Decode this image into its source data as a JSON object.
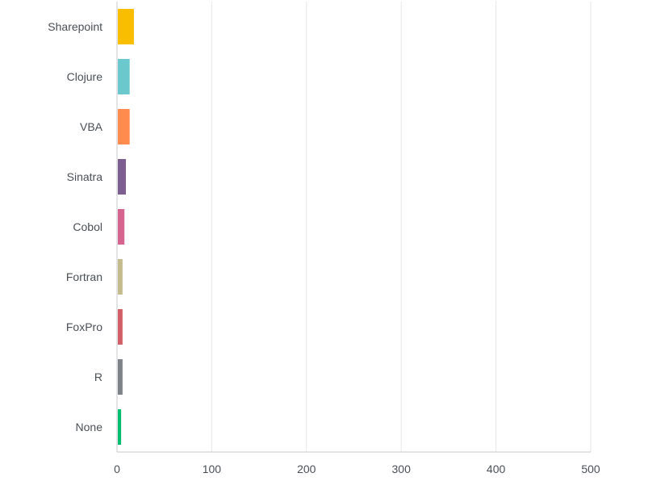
{
  "chart_data": {
    "type": "bar",
    "orientation": "horizontal",
    "categories": [
      "Sharepoint",
      "Clojure",
      "VBA",
      "Sinatra",
      "Cobol",
      "Fortran",
      "FoxPro",
      "R",
      "None"
    ],
    "values": [
      17,
      12.5,
      12.5,
      8.5,
      7,
      5,
      5,
      5,
      3.5
    ],
    "colors": [
      "#f9be00",
      "#6bc8cd",
      "#ff8b4f",
      "#7d5e90",
      "#d5658f",
      "#c4bc8c",
      "#d25f67",
      "#7d8388",
      "#00bf6f"
    ],
    "xlim": [
      0,
      500
    ],
    "xticks": [
      "0",
      "100",
      "200",
      "300",
      "400",
      "500"
    ],
    "grid": true,
    "title": "",
    "xlabel": "",
    "ylabel": ""
  }
}
